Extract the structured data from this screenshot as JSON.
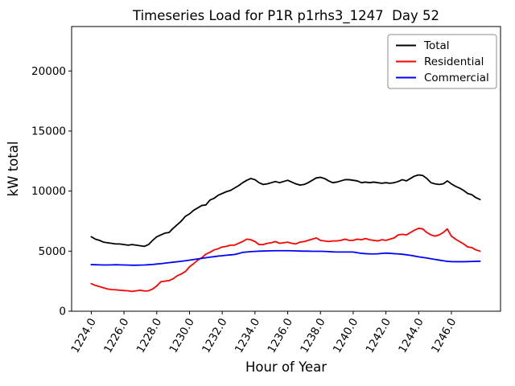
{
  "chart_data": {
    "type": "line",
    "title": "Timeseries Load for P1R p1rhs3_1247  Day 52",
    "xlabel": "Hour of Year",
    "ylabel": "kW total",
    "xlim": [
      1222.8,
      1249.0
    ],
    "ylim": [
      0,
      23700
    ],
    "grid": false,
    "x_tick_values": [
      1224,
      1226,
      1228,
      1230,
      1232,
      1234,
      1236,
      1238,
      1240,
      1242,
      1244,
      1246
    ],
    "x_tick_labels": [
      "1224.0",
      "1226.0",
      "1228.0",
      "1230.0",
      "1232.0",
      "1234.0",
      "1236.0",
      "1238.0",
      "1240.0",
      "1242.0",
      "1244.0",
      "1246.0"
    ],
    "x_tick_rotation_deg": 60,
    "y_tick_values": [
      0,
      5000,
      10000,
      15000,
      20000
    ],
    "y_tick_labels": [
      "0",
      "5000",
      "10000",
      "15000",
      "20000"
    ],
    "legend": {
      "position": "upper-right",
      "frame": true,
      "labels": [
        "Total",
        "Residential",
        "Commercial"
      ]
    },
    "x_start": 1224.0,
    "x_step": 0.25,
    "x": [
      1224.0,
      1224.25,
      1224.5,
      1224.75,
      1225.0,
      1225.25,
      1225.5,
      1225.75,
      1226.0,
      1226.25,
      1226.5,
      1226.75,
      1227.0,
      1227.25,
      1227.5,
      1227.75,
      1228.0,
      1228.25,
      1228.5,
      1228.75,
      1229.0,
      1229.25,
      1229.5,
      1229.75,
      1230.0,
      1230.25,
      1230.5,
      1230.75,
      1231.0,
      1231.25,
      1231.5,
      1231.75,
      1232.0,
      1232.25,
      1232.5,
      1232.75,
      1233.0,
      1233.25,
      1233.5,
      1233.75,
      1234.0,
      1234.25,
      1234.5,
      1234.75,
      1235.0,
      1235.25,
      1235.5,
      1235.75,
      1236.0,
      1236.25,
      1236.5,
      1236.75,
      1237.0,
      1237.25,
      1237.5,
      1237.75,
      1238.0,
      1238.25,
      1238.5,
      1238.75,
      1239.0,
      1239.25,
      1239.5,
      1239.75,
      1240.0,
      1240.25,
      1240.5,
      1240.75,
      1241.0,
      1241.25,
      1241.5,
      1241.75,
      1242.0,
      1242.25,
      1242.5,
      1242.75,
      1243.0,
      1243.25,
      1243.5,
      1243.75,
      1244.0,
      1244.25,
      1244.5,
      1244.75,
      1245.0,
      1245.25,
      1245.5,
      1245.75,
      1246.0,
      1246.25,
      1246.5,
      1246.75,
      1247.0,
      1247.25,
      1247.5,
      1247.75
    ],
    "series": [
      {
        "name": "Total",
        "color": "#000000",
        "values": [
          6200,
          6000,
          5900,
          5750,
          5700,
          5650,
          5600,
          5600,
          5550,
          5500,
          5550,
          5500,
          5450,
          5400,
          5550,
          5900,
          6200,
          6350,
          6500,
          6550,
          6900,
          7200,
          7500,
          7900,
          8100,
          8400,
          8600,
          8800,
          8850,
          9250,
          9400,
          9650,
          9800,
          9950,
          10050,
          10250,
          10450,
          10700,
          10900,
          11050,
          10950,
          10700,
          10550,
          10600,
          10700,
          10800,
          10700,
          10800,
          10900,
          10750,
          10600,
          10500,
          10550,
          10700,
          10900,
          11100,
          11150,
          11050,
          10850,
          10700,
          10750,
          10850,
          10950,
          10950,
          10900,
          10850,
          10700,
          10750,
          10700,
          10750,
          10700,
          10650,
          10700,
          10650,
          10700,
          10800,
          10950,
          10850,
          11050,
          11250,
          11350,
          11300,
          11050,
          10700,
          10600,
          10550,
          10600,
          10850,
          10600,
          10400,
          10250,
          10050,
          9800,
          9700,
          9450,
          9300
        ]
      },
      {
        "name": "Residential",
        "color": "#ff0000",
        "values": [
          2300,
          2150,
          2050,
          1950,
          1850,
          1800,
          1780,
          1750,
          1720,
          1700,
          1650,
          1700,
          1750,
          1680,
          1700,
          1850,
          2100,
          2450,
          2500,
          2550,
          2700,
          2950,
          3100,
          3300,
          3700,
          3950,
          4250,
          4450,
          4750,
          4900,
          5100,
          5200,
          5350,
          5400,
          5500,
          5500,
          5650,
          5800,
          6000,
          5950,
          5800,
          5550,
          5550,
          5650,
          5700,
          5800,
          5650,
          5700,
          5750,
          5650,
          5600,
          5750,
          5800,
          5900,
          6000,
          6100,
          5900,
          5850,
          5800,
          5850,
          5850,
          5900,
          6000,
          5900,
          5900,
          6000,
          5950,
          6050,
          5950,
          5900,
          5850,
          5950,
          5900,
          6000,
          6100,
          6350,
          6400,
          6350,
          6550,
          6750,
          6900,
          6850,
          6550,
          6350,
          6250,
          6350,
          6550,
          6850,
          6250,
          6000,
          5800,
          5600,
          5350,
          5300,
          5100,
          5000
        ]
      },
      {
        "name": "Commercial",
        "color": "#0000ff",
        "values": [
          3880,
          3870,
          3860,
          3850,
          3850,
          3860,
          3870,
          3860,
          3850,
          3840,
          3830,
          3830,
          3840,
          3850,
          3870,
          3890,
          3930,
          3960,
          4000,
          4040,
          4080,
          4120,
          4160,
          4200,
          4250,
          4300,
          4350,
          4400,
          4450,
          4500,
          4540,
          4590,
          4620,
          4660,
          4690,
          4720,
          4800,
          4900,
          4930,
          4960,
          4980,
          5000,
          5010,
          5020,
          5030,
          5040,
          5040,
          5040,
          5040,
          5030,
          5020,
          5010,
          5000,
          5000,
          4990,
          4990,
          4990,
          4980,
          4960,
          4940,
          4930,
          4930,
          4930,
          4930,
          4930,
          4870,
          4820,
          4790,
          4770,
          4770,
          4780,
          4810,
          4840,
          4820,
          4790,
          4770,
          4740,
          4700,
          4650,
          4590,
          4530,
          4480,
          4430,
          4370,
          4310,
          4255,
          4200,
          4150,
          4130,
          4120,
          4120,
          4120,
          4130,
          4145,
          4155,
          4165
        ]
      }
    ]
  }
}
